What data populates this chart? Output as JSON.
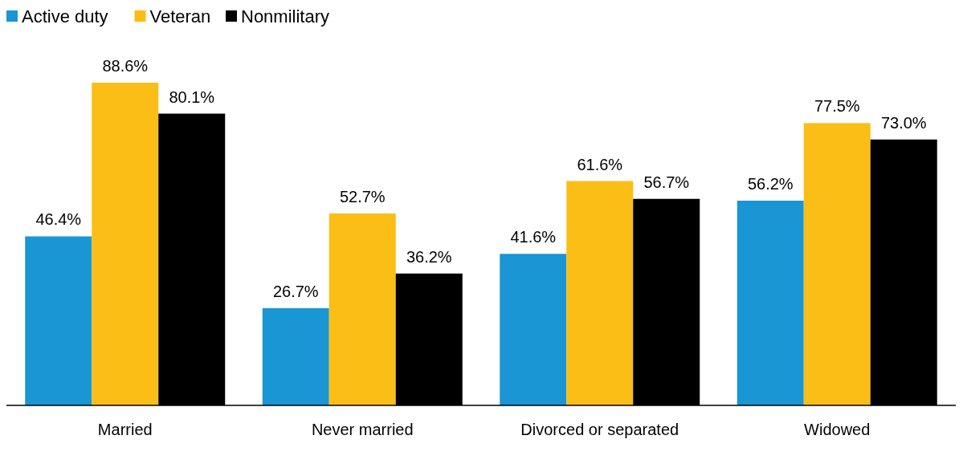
{
  "chart_data": {
    "type": "bar",
    "categories": [
      "Married",
      "Never married",
      "Divorced or separated",
      "Widowed"
    ],
    "series": [
      {
        "name": "Active duty",
        "color": "#1996d3",
        "values": [
          46.4,
          26.7,
          41.6,
          56.2
        ],
        "value_labels": [
          "46.4%",
          "26.7%",
          "41.6%",
          "56.2%"
        ]
      },
      {
        "name": "Veteran",
        "color": "#fbbe16",
        "values": [
          88.6,
          52.7,
          61.6,
          77.5
        ],
        "value_labels": [
          "88.6%",
          "52.7%",
          "61.6%",
          "77.5%"
        ]
      },
      {
        "name": "Nonmilitary",
        "color": "#000000",
        "values": [
          80.1,
          36.2,
          56.7,
          73.0
        ],
        "value_labels": [
          "80.1%",
          "36.2%",
          "56.7%",
          "73.0%"
        ]
      }
    ],
    "legend": "top left"
  }
}
